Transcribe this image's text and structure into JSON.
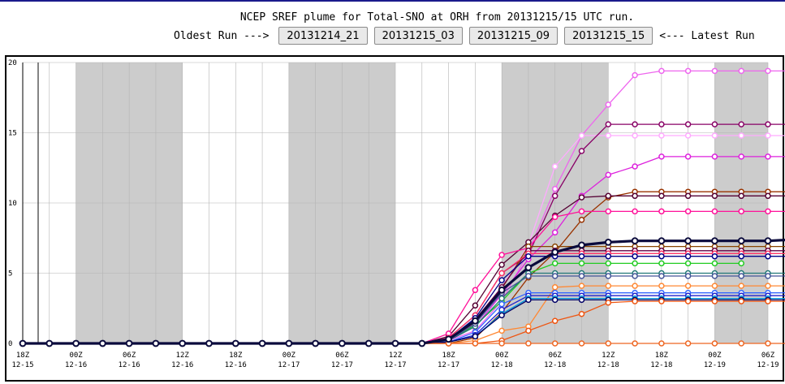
{
  "header": {
    "title": "NCEP SREF plume for Total-SNO at ORH from 20131215/15 UTC run.",
    "oldest_label": "Oldest Run --->",
    "latest_label": "<--- Latest Run",
    "runs": [
      "20131214_21",
      "20131215_03",
      "20131215_09",
      "20131215_15"
    ]
  },
  "colors": {
    "shade": "#cccccc",
    "grid": "#b4b4b4",
    "mean": "#0a0a3c"
  },
  "chart_data": {
    "type": "line",
    "title": "",
    "xlabel": "",
    "ylabel": "",
    "ylim": [
      0,
      20
    ],
    "yticks": [
      0,
      5,
      10,
      15,
      20
    ],
    "x_hours": [
      0,
      3,
      6,
      9,
      12,
      15,
      18,
      21,
      24,
      27,
      30,
      33,
      36,
      39,
      42,
      45,
      48,
      51,
      54,
      57,
      60,
      63,
      66,
      69,
      72,
      75,
      78,
      81,
      84,
      87
    ],
    "xticks": [
      {
        "h": 0,
        "top": "18Z",
        "bottom": "12-15"
      },
      {
        "h": 6,
        "top": "00Z",
        "bottom": "12-16"
      },
      {
        "h": 12,
        "top": "06Z",
        "bottom": "12-16"
      },
      {
        "h": 18,
        "top": "12Z",
        "bottom": "12-16"
      },
      {
        "h": 24,
        "top": "18Z",
        "bottom": "12-16"
      },
      {
        "h": 30,
        "top": "00Z",
        "bottom": "12-17"
      },
      {
        "h": 36,
        "top": "06Z",
        "bottom": "12-17"
      },
      {
        "h": 42,
        "top": "12Z",
        "bottom": "12-17"
      },
      {
        "h": 48,
        "top": "18Z",
        "bottom": "12-17"
      },
      {
        "h": 54,
        "top": "00Z",
        "bottom": "12-18"
      },
      {
        "h": 60,
        "top": "06Z",
        "bottom": "12-18"
      },
      {
        "h": 66,
        "top": "12Z",
        "bottom": "12-18"
      },
      {
        "h": 72,
        "top": "18Z",
        "bottom": "12-18"
      },
      {
        "h": 78,
        "top": "00Z",
        "bottom": "12-19"
      },
      {
        "h": 84,
        "top": "06Z",
        "bottom": "12-19"
      }
    ],
    "night_bands": [
      [
        6,
        18
      ],
      [
        30,
        42
      ],
      [
        54,
        66
      ],
      [
        78,
        84
      ]
    ],
    "series": [
      {
        "color": "#ee66ee",
        "width": 1.3,
        "values": [
          0,
          0,
          0,
          0,
          0,
          0,
          0,
          0,
          0,
          0,
          0,
          0,
          0,
          0,
          0,
          0,
          0.2,
          0.9,
          3.0,
          6.5,
          11.0,
          14.8,
          17.0,
          19.1,
          19.4,
          19.4,
          19.4,
          19.4,
          19.4,
          19.4
        ]
      },
      {
        "color": "#ffaaff",
        "width": 1.3,
        "values": [
          0,
          0,
          0,
          0,
          0,
          0,
          0,
          0,
          0,
          0,
          0,
          0,
          0,
          0,
          0,
          0,
          0.3,
          1.4,
          4.0,
          7.0,
          12.6,
          14.8,
          14.8,
          14.8,
          14.8,
          14.8,
          14.8,
          14.8,
          14.8,
          14.8
        ]
      },
      {
        "color": "#880066",
        "width": 1.3,
        "values": [
          0,
          0,
          0,
          0,
          0,
          0,
          0,
          0,
          0,
          0,
          0,
          0,
          0,
          0,
          0,
          0,
          0.4,
          2.0,
          5.0,
          6.3,
          10.5,
          13.7,
          15.6,
          15.6,
          15.6,
          15.6,
          15.6,
          15.6,
          15.6,
          15.6
        ]
      },
      {
        "color": "#dd22dd",
        "width": 1.3,
        "values": [
          0,
          0,
          0,
          0,
          0,
          0,
          0,
          0,
          0,
          0,
          0,
          0,
          0,
          0,
          0,
          0,
          0.2,
          1.2,
          3.5,
          6.0,
          7.9,
          10.5,
          12.0,
          12.6,
          13.3,
          13.3,
          13.3,
          13.3,
          13.3,
          13.3
        ]
      },
      {
        "color": "#993300",
        "width": 1.3,
        "values": [
          0,
          0,
          0,
          0,
          0,
          0,
          0,
          0,
          0,
          0,
          0,
          0,
          0,
          0,
          0,
          0,
          0,
          0.4,
          2.2,
          4.7,
          6.5,
          8.8,
          10.4,
          10.8,
          10.8,
          10.8,
          10.8,
          10.8,
          10.8,
          10.8
        ]
      },
      {
        "color": "#550033",
        "width": 1.3,
        "values": [
          0,
          0,
          0,
          0,
          0,
          0,
          0,
          0,
          0,
          0,
          0,
          0,
          0,
          0,
          0,
          0,
          0.5,
          2.7,
          5.6,
          7.2,
          9.1,
          10.4,
          10.5,
          10.5,
          10.5,
          10.5,
          10.5,
          10.5,
          10.5,
          10.5
        ]
      },
      {
        "color": "#ff1199",
        "width": 1.3,
        "values": [
          0,
          0,
          0,
          0,
          0,
          0,
          0,
          0,
          0,
          0,
          0,
          0,
          0,
          0,
          0,
          0,
          0.7,
          3.8,
          6.3,
          6.8,
          9.0,
          9.4,
          9.4,
          9.4,
          9.4,
          9.4,
          9.4,
          9.4,
          9.4,
          9.4
        ]
      },
      {
        "color": "#884400",
        "width": 1.3,
        "values": [
          0,
          0,
          0,
          0,
          0,
          0,
          0,
          0,
          0,
          0,
          0,
          0,
          0,
          0,
          0,
          0,
          0.3,
          1.5,
          3.9,
          6.9,
          6.9,
          6.9,
          6.9,
          6.9,
          6.9,
          6.9,
          6.9,
          6.9,
          6.9,
          6.9
        ]
      },
      {
        "color": "#660044",
        "width": 1.3,
        "values": [
          0,
          0,
          0,
          0,
          0,
          0,
          0,
          0,
          0,
          0,
          0,
          0,
          0,
          0,
          0,
          0,
          0.3,
          1.7,
          4.0,
          6.6,
          6.6,
          6.6,
          6.6,
          6.6,
          6.6,
          6.6,
          6.6,
          6.6,
          6.6,
          6.6
        ]
      },
      {
        "color": "#ff3366",
        "width": 1.3,
        "values": [
          0,
          0,
          0,
          0,
          0,
          0,
          0,
          0,
          0,
          0,
          0,
          0,
          0,
          0,
          0,
          0,
          0.4,
          2.0,
          5.0,
          6.4,
          6.4,
          6.4,
          6.4,
          6.4,
          6.4,
          6.4,
          6.4,
          6.4,
          6.4,
          6.4
        ]
      },
      {
        "color": "#000088",
        "width": 1.3,
        "values": [
          0,
          0,
          0,
          0,
          0,
          0,
          0,
          0,
          0,
          0,
          0,
          0,
          0,
          0,
          0,
          0,
          0.3,
          1.8,
          4.5,
          6.2,
          6.2,
          6.2,
          6.2,
          6.2,
          6.2,
          6.2,
          6.2,
          6.2,
          6.2,
          6.2
        ]
      },
      {
        "color": "#22cc22",
        "width": 1.3,
        "values": [
          0,
          0,
          0,
          0,
          0,
          0,
          0,
          0,
          0,
          0,
          0,
          0,
          0,
          0,
          0,
          0,
          0.2,
          1.3,
          3.0,
          5.0,
          5.7,
          5.7,
          5.7,
          5.7,
          5.7,
          5.7,
          5.7,
          5.7,
          null,
          null
        ]
      },
      {
        "color": "#227777",
        "width": 1.3,
        "values": [
          0,
          0,
          0,
          0,
          0,
          0,
          0,
          0,
          0,
          0,
          0,
          0,
          0,
          0,
          0,
          0,
          0.2,
          1.2,
          3.2,
          5.0,
          5.0,
          5.0,
          5.0,
          5.0,
          5.0,
          5.0,
          5.0,
          5.0,
          5.0,
          5.0
        ]
      },
      {
        "color": "#445599",
        "width": 1.3,
        "values": [
          0,
          0,
          0,
          0,
          0,
          0,
          0,
          0,
          0,
          0,
          0,
          0,
          0,
          0,
          0,
          0,
          0.2,
          1.4,
          3.6,
          4.8,
          4.8,
          4.8,
          4.8,
          4.8,
          4.8,
          4.8,
          4.8,
          4.8,
          4.8,
          4.8
        ]
      },
      {
        "color": "#ff8833",
        "width": 1.3,
        "values": [
          0,
          0,
          0,
          0,
          0,
          0,
          0,
          0,
          0,
          0,
          0,
          0,
          0,
          0,
          0,
          0,
          0,
          0.2,
          0.9,
          1.2,
          4.0,
          4.1,
          4.1,
          4.1,
          4.1,
          4.1,
          4.1,
          4.1,
          4.1,
          4.1
        ]
      },
      {
        "color": "#3366ff",
        "width": 1.3,
        "values": [
          0,
          0,
          0,
          0,
          0,
          0,
          0,
          0,
          0,
          0,
          0,
          0,
          0,
          0,
          0,
          0,
          0.1,
          0.8,
          2.8,
          3.6,
          3.6,
          3.6,
          3.6,
          3.6,
          3.6,
          3.6,
          3.6,
          3.6,
          3.6,
          3.6
        ]
      },
      {
        "color": "#2222cc",
        "width": 1.3,
        "values": [
          0,
          0,
          0,
          0,
          0,
          0,
          0,
          0,
          0,
          0,
          0,
          0,
          0,
          0,
          0,
          0,
          0.1,
          0.6,
          2.4,
          3.4,
          3.4,
          3.4,
          3.4,
          3.4,
          3.4,
          3.4,
          3.4,
          3.4,
          3.4,
          3.4
        ]
      },
      {
        "color": "#0099dd",
        "width": 1.3,
        "values": [
          0,
          0,
          0,
          0,
          0,
          0,
          0,
          0,
          0,
          0,
          0,
          0,
          0,
          0,
          0,
          0,
          0.1,
          0.5,
          2.1,
          3.2,
          3.2,
          3.2,
          3.2,
          3.2,
          3.2,
          3.2,
          3.2,
          3.2,
          3.2,
          3.2
        ]
      },
      {
        "color": "#000066",
        "width": 1.3,
        "values": [
          0,
          0,
          0,
          0,
          0,
          0,
          0,
          0,
          0,
          0,
          0,
          0,
          0,
          0,
          0,
          0,
          0.1,
          0.5,
          2.0,
          3.1,
          3.1,
          3.1,
          3.1,
          3.1,
          3.1,
          3.1,
          3.1,
          3.1,
          3.1,
          3.1
        ]
      },
      {
        "color": "#ee5511",
        "width": 1.3,
        "values": [
          0,
          0,
          0,
          0,
          0,
          0,
          0,
          0,
          0,
          0,
          0,
          0,
          0,
          0,
          0,
          0,
          0,
          0,
          0.2,
          0.9,
          1.6,
          2.1,
          2.9,
          3.0,
          3.0,
          3.0,
          3.0,
          3.0,
          3.0,
          3.0
        ]
      },
      {
        "color": "#ee6622",
        "width": 1.3,
        "values": [
          0,
          0,
          0,
          0,
          0,
          0,
          0,
          0,
          0,
          0,
          0,
          0,
          0,
          0,
          0,
          0,
          0,
          0,
          0,
          0,
          0,
          0,
          0,
          0,
          0,
          0,
          0,
          0,
          0,
          0
        ]
      },
      {
        "color": "#0a0a3c",
        "width": 3.2,
        "values": [
          0,
          0,
          0,
          0,
          0,
          0,
          0,
          0,
          0,
          0,
          0,
          0,
          0,
          0,
          0,
          0,
          0.3,
          1.6,
          3.8,
          5.4,
          6.5,
          7.0,
          7.2,
          7.3,
          7.3,
          7.3,
          7.3,
          7.3,
          7.3,
          7.4
        ]
      }
    ]
  }
}
